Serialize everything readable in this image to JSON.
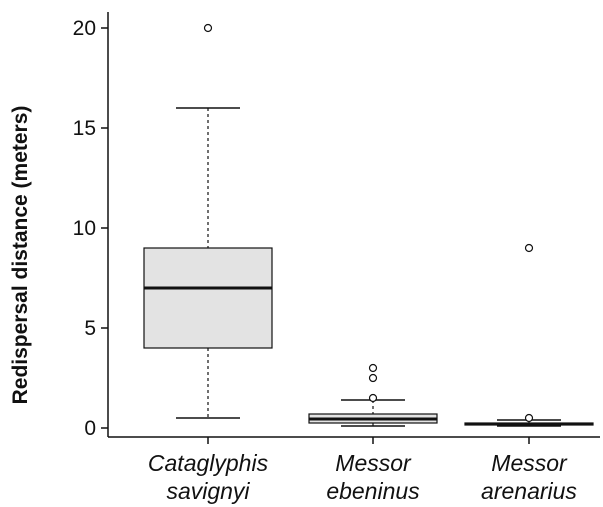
{
  "chart_data": {
    "type": "box",
    "title": "",
    "xlabel": "",
    "ylabel": "Redispersal distance (meters)",
    "ylim": [
      -0.4,
      20.8
    ],
    "yticks": [
      0,
      5,
      10,
      15,
      20
    ],
    "ytick_labels": [
      "0",
      "5",
      "10",
      "15",
      "20"
    ],
    "grid": false,
    "categories": [
      {
        "line1": "Cataglyphis",
        "line2": "savignyi"
      },
      {
        "line1": "Messor",
        "line2": "ebeninus"
      },
      {
        "line1": "Messor",
        "line2": "arenarius"
      }
    ],
    "boxes": [
      {
        "whisker_low": 0.5,
        "q1": 4.0,
        "median": 7.0,
        "q3": 9.0,
        "whisker_high": 16.0,
        "outliers": [
          20.0
        ]
      },
      {
        "whisker_low": 0.1,
        "q1": 0.25,
        "median": 0.45,
        "q3": 0.7,
        "whisker_high": 1.4,
        "outliers": [
          1.5,
          2.5,
          3.0
        ]
      },
      {
        "whisker_low": 0.1,
        "q1": 0.15,
        "median": 0.2,
        "q3": 0.25,
        "whisker_high": 0.4,
        "outliers": [
          0.5,
          9.0
        ]
      }
    ],
    "colors": {
      "box_fill": "#e3e3e3",
      "line": "#111111"
    }
  }
}
